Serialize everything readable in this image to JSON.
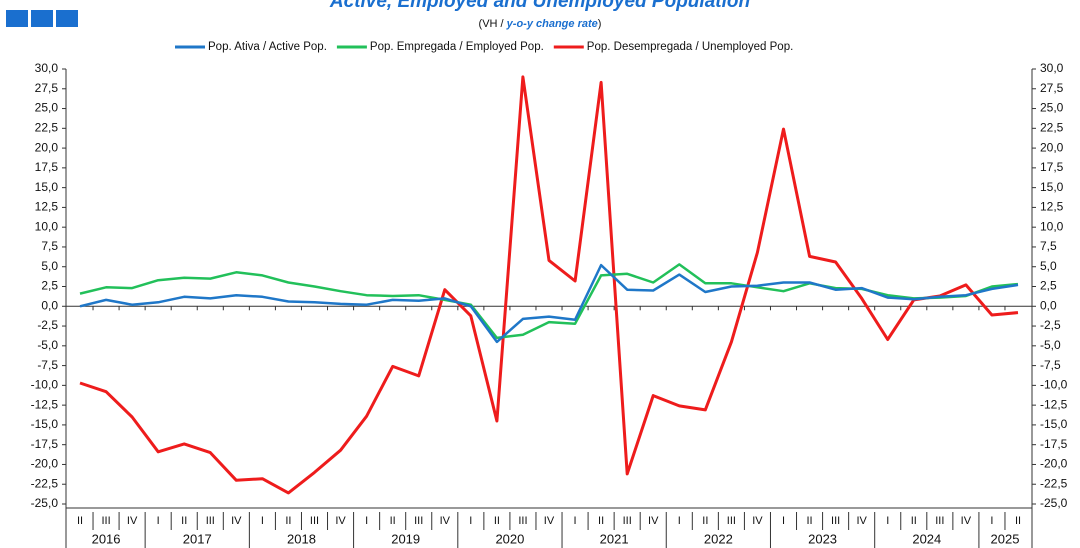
{
  "chart_data": {
    "type": "line",
    "title": "Active, Employed and Unemployed Population",
    "subtitle": [
      "(VH / ",
      "y-o-y change rate",
      ")"
    ],
    "categories": [
      "II",
      "III",
      "IV",
      "I",
      "II",
      "III",
      "IV",
      "I",
      "II",
      "III",
      "IV",
      "I",
      "II",
      "III",
      "IV",
      "I",
      "II",
      "III",
      "IV",
      "I",
      "II",
      "III",
      "IV",
      "I",
      "II",
      "III",
      "IV",
      "I",
      "II",
      "III",
      "IV",
      "I",
      "II",
      "III",
      "IV",
      "I",
      "II"
    ],
    "years": [
      "2016",
      "2017",
      "2018",
      "2019",
      "2020",
      "2021",
      "2022",
      "2023",
      "2024",
      "2025"
    ],
    "series": [
      {
        "name": "Pop. Ativa / Active Pop.",
        "color": "#1f77c8",
        "values": [
          0.0,
          0.8,
          0.2,
          0.5,
          1.2,
          1.0,
          1.4,
          1.2,
          0.6,
          0.5,
          0.3,
          0.2,
          0.8,
          0.7,
          1.0,
          0.0,
          -4.5,
          -1.6,
          -1.3,
          -1.7,
          5.2,
          2.1,
          2.0,
          4.0,
          1.8,
          2.5,
          2.6,
          3.0,
          3.0,
          2.1,
          2.3,
          1.1,
          0.9,
          1.2,
          1.4,
          2.2,
          2.7
        ]
      },
      {
        "name": "Pop. Empregada / Employed Pop.",
        "color": "#22c05a",
        "values": [
          1.6,
          2.4,
          2.3,
          3.3,
          3.6,
          3.5,
          4.3,
          3.9,
          3.0,
          2.5,
          1.9,
          1.4,
          1.3,
          1.4,
          0.8,
          0.2,
          -4.0,
          -3.6,
          -2.0,
          -2.2,
          3.9,
          4.1,
          3.0,
          5.3,
          2.9,
          2.9,
          2.4,
          1.9,
          2.9,
          2.3,
          2.2,
          1.4,
          1.0,
          1.1,
          1.3,
          2.5,
          2.8
        ]
      },
      {
        "name": "Pop. Desempregada / Unemployed Pop.",
        "color": "#ee1c1c",
        "values": [
          -9.7,
          -10.8,
          -14.0,
          -18.4,
          -17.4,
          -18.5,
          -22.0,
          -21.8,
          -23.6,
          -21.0,
          -18.2,
          -13.9,
          -7.6,
          -8.8,
          2.1,
          -1.2,
          -14.5,
          29.0,
          5.8,
          3.2,
          28.3,
          -21.2,
          -11.3,
          -12.6,
          -13.1,
          -4.5,
          6.8,
          22.4,
          6.3,
          5.6,
          1.0,
          -4.2,
          0.8,
          1.3,
          2.7,
          -1.1,
          -0.8
        ]
      }
    ],
    "ylim": [
      -25,
      30
    ],
    "yticks": [
      {
        "value": 30,
        "label": "30,0"
      },
      {
        "value": 27.5,
        "label": "27,5"
      },
      {
        "value": 25,
        "label": "25,0"
      },
      {
        "value": 22.5,
        "label": "22,5"
      },
      {
        "value": 20,
        "label": "20,0"
      },
      {
        "value": 17.5,
        "label": "17,5"
      },
      {
        "value": 15,
        "label": "15,0"
      },
      {
        "value": 12.5,
        "label": "12,5"
      },
      {
        "value": 10,
        "label": "10,0"
      },
      {
        "value": 7.5,
        "label": "7,5"
      },
      {
        "value": 5,
        "label": "5,0"
      },
      {
        "value": 2.5,
        "label": "2,5"
      },
      {
        "value": 0,
        "label": "0,0"
      },
      {
        "value": -2.5,
        "label": "-2,5"
      },
      {
        "value": -5,
        "label": "-5,0"
      },
      {
        "value": -7.5,
        "label": "-7,5"
      },
      {
        "value": -10,
        "label": "-10,0"
      },
      {
        "value": -12.5,
        "label": "-12,5"
      },
      {
        "value": -15,
        "label": "-15,0"
      },
      {
        "value": -17.5,
        "label": "-17,5"
      },
      {
        "value": -20,
        "label": "-20,0"
      },
      {
        "value": -22.5,
        "label": "-22,5"
      },
      {
        "value": -25,
        "label": "-25,0"
      }
    ],
    "legend": "top"
  }
}
